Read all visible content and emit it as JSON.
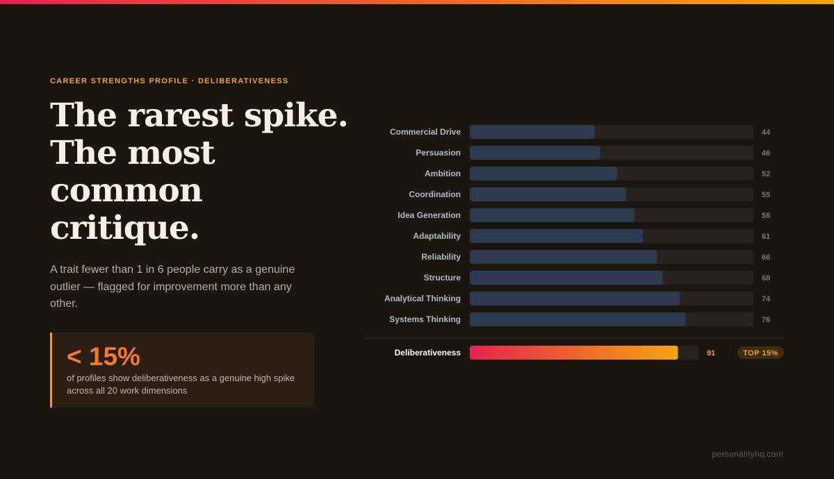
{
  "header": {
    "eyebrow": "CAREER STRENGTHS PROFILE · DELIBERATIVENESS",
    "title_lines": [
      "The rarest spike.",
      "The most",
      "common",
      "critique."
    ],
    "subtitle": "A trait fewer than 1 in 6 people carry as a genuine outlier — flagged for improvement more than any other.",
    "stat": {
      "value": "< 15%",
      "caption": "of profiles show deliberativeness as a genuine high spike across all 20 work dimensions"
    }
  },
  "chart_data": {
    "type": "bar",
    "orientation": "horizontal",
    "categories": [
      "Commercial Drive",
      "Persuasion",
      "Ambition",
      "Coordination",
      "Idea Generation",
      "Adaptability",
      "Reliability",
      "Structure",
      "Analytical Thinking",
      "Systems Thinking"
    ],
    "values": [
      44,
      46,
      52,
      55,
      58,
      61,
      66,
      68,
      74,
      76
    ],
    "color": "#2d3a50",
    "xlim": [
      0,
      100
    ],
    "highlight": {
      "name": "Deliberativeness",
      "value": 91,
      "badge": "TOP 15%",
      "colors": [
        "#e5234f",
        "#f5a60c"
      ]
    }
  },
  "footer": "personalityhq.com"
}
